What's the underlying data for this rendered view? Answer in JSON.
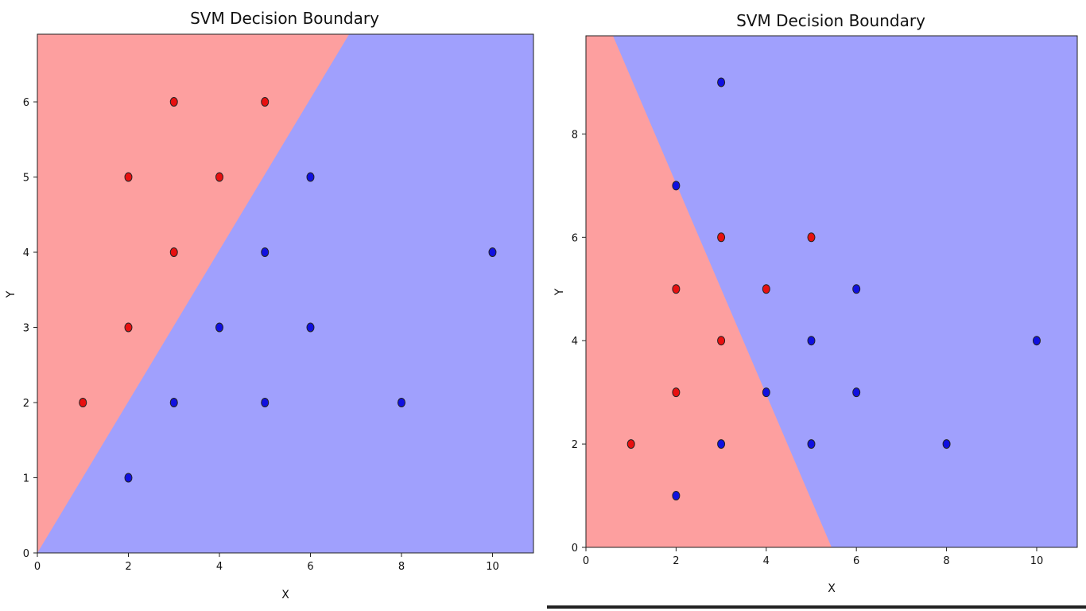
{
  "colors": {
    "class_red_region": "#fd9f9f",
    "class_blue_region": "#a0a0fd",
    "class_red_point": "#e81010",
    "class_blue_point": "#1010e0",
    "point_edge": "#222222"
  },
  "chart_data": [
    {
      "type": "scatter",
      "title": "SVM Decision Boundary",
      "xlabel": "X",
      "ylabel": "Y",
      "xlim": [
        0,
        10.9
      ],
      "ylim": [
        0,
        6.9
      ],
      "xticks": [
        0,
        2,
        4,
        6,
        8,
        10
      ],
      "yticks": [
        0,
        1,
        2,
        3,
        4,
        5,
        6
      ],
      "grid": false,
      "legend": "none",
      "decision_boundary": {
        "kind": "line",
        "through": [
          [
            0,
            0
          ],
          [
            6.85,
            6.9
          ]
        ],
        "left_region": "red",
        "right_region": "blue"
      },
      "series": [
        {
          "class": "red",
          "x": [
            1,
            2,
            2,
            3,
            3,
            4,
            5
          ],
          "y": [
            2,
            3,
            5,
            4,
            6,
            5,
            6
          ]
        },
        {
          "class": "blue",
          "x": [
            2,
            3,
            4,
            5,
            5,
            6,
            6,
            8,
            10
          ],
          "y": [
            1,
            2,
            3,
            2,
            4,
            3,
            5,
            2,
            4
          ]
        }
      ]
    },
    {
      "type": "scatter",
      "title": "SVM Decision Boundary",
      "xlabel": "X",
      "ylabel": "Y",
      "xlim": [
        0,
        10.9
      ],
      "ylim": [
        0,
        9.9
      ],
      "xticks": [
        0,
        2,
        4,
        6,
        8,
        10
      ],
      "yticks": [
        0,
        2,
        4,
        6,
        8
      ],
      "grid": false,
      "legend": "none",
      "decision_boundary": {
        "kind": "line",
        "through": [
          [
            0.6,
            9.9
          ],
          [
            5.45,
            0
          ]
        ],
        "left_region": "red",
        "right_region": "blue"
      },
      "series": [
        {
          "class": "red",
          "x": [
            1,
            2,
            2,
            3,
            3,
            4,
            5
          ],
          "y": [
            2,
            3,
            5,
            4,
            6,
            5,
            6
          ]
        },
        {
          "class": "blue",
          "x": [
            2,
            2,
            3,
            3,
            4,
            5,
            5,
            6,
            6,
            8,
            10
          ],
          "y": [
            1,
            7,
            2,
            9,
            3,
            2,
            4,
            3,
            5,
            2,
            4
          ]
        }
      ]
    }
  ]
}
